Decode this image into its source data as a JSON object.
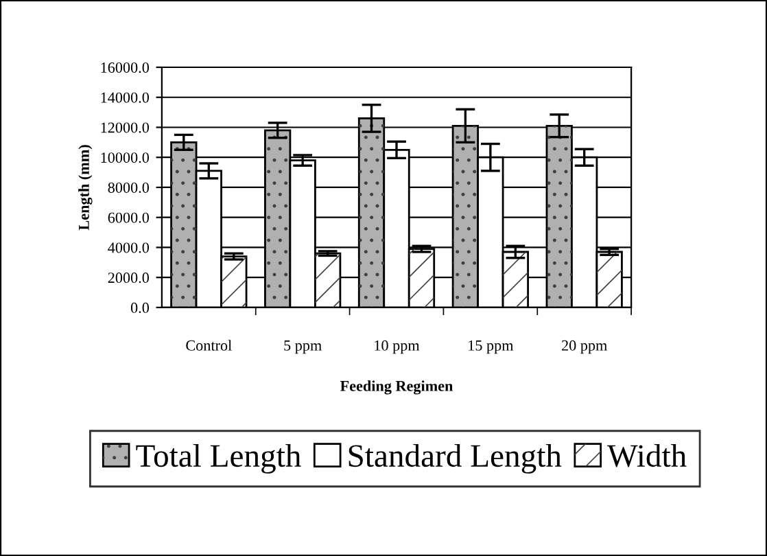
{
  "chart_data": {
    "type": "bar",
    "xlabel": "Feeding Regimen",
    "ylabel": "Length (mm)",
    "categories": [
      "Control",
      "5 ppm",
      "10 ppm",
      "15 ppm",
      "20 ppm"
    ],
    "series": [
      {
        "name": "Total Length",
        "color": "#b0b0b0",
        "values": [
          11000,
          11800,
          12600,
          12100,
          12100
        ],
        "errors": [
          500,
          500,
          900,
          1100,
          750
        ]
      },
      {
        "name": "Standard Length",
        "color": "#ffffff",
        "values": [
          9100,
          9800,
          10500,
          10000,
          10000
        ],
        "errors": [
          500,
          350,
          550,
          900,
          550
        ]
      },
      {
        "name": "Width",
        "color": "#ffffff",
        "values": [
          3400,
          3600,
          3900,
          3700,
          3700
        ],
        "errors": [
          200,
          150,
          200,
          400,
          200
        ]
      }
    ],
    "ylim": [
      0,
      16000
    ],
    "yticks": [
      {
        "value": 0,
        "label": "0.0"
      },
      {
        "value": 2000,
        "label": "2000.0"
      },
      {
        "value": 4000,
        "label": "4000.0"
      },
      {
        "value": 6000,
        "label": "6000.0"
      },
      {
        "value": 8000,
        "label": "8000.0"
      },
      {
        "value": 10000,
        "label": "10000.0"
      },
      {
        "value": 12000,
        "label": "12000.0"
      },
      {
        "value": 14000,
        "label": "14000.0"
      },
      {
        "value": 16000,
        "label": "16000.0"
      }
    ],
    "grid": "y",
    "legend": "bottom"
  }
}
